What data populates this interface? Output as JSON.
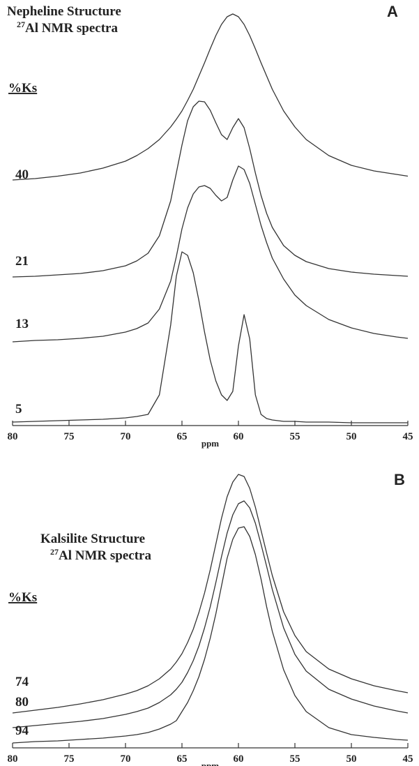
{
  "chart_data": [
    {
      "type": "line",
      "panel": "A",
      "title": "Nepheline Structure",
      "isotope": "27",
      "subtitle": "Al NMR spectra",
      "legend_title": "%Ks",
      "xlabel": "ppm",
      "xlim": [
        80,
        45
      ],
      "xticks": [
        80,
        75,
        70,
        65,
        60,
        55,
        50,
        45
      ],
      "x": [
        80,
        78,
        76,
        74,
        72,
        70,
        69,
        68,
        67,
        66,
        65.5,
        65,
        64.5,
        64,
        63.5,
        63,
        62.5,
        62,
        61.5,
        61,
        60.5,
        60,
        59.5,
        59,
        58.5,
        58,
        57.5,
        57,
        56,
        55,
        54,
        52,
        50,
        48,
        46,
        45
      ],
      "series": [
        {
          "name": "40",
          "color": "#333333",
          "values": [
            10,
            12,
            15.5,
            20,
            27,
            37,
            45,
            55,
            68,
            86,
            97,
            109,
            124,
            140,
            159,
            178,
            198,
            217,
            233,
            244,
            248,
            244,
            233,
            217,
            198,
            178,
            159,
            140,
            109,
            86,
            68,
            45,
            31,
            23,
            18,
            15.5
          ]
        },
        {
          "name": "21",
          "color": "#333333",
          "values": [
            1,
            2,
            4,
            6,
            10,
            17,
            24,
            35,
            60,
            110,
            150,
            190,
            225,
            245,
            253,
            252,
            240,
            222,
            205,
            198,
            215,
            228,
            215,
            185,
            150,
            118,
            92,
            72,
            46,
            32,
            23,
            13,
            8,
            5,
            3,
            2
          ]
        },
        {
          "name": "13",
          "color": "#333333",
          "values": [
            -2,
            0,
            1,
            3,
            6,
            12,
            17,
            25,
            45,
            85,
            120,
            160,
            190,
            210,
            220,
            222,
            218,
            208,
            200,
            205,
            230,
            250,
            245,
            225,
            195,
            165,
            140,
            118,
            88,
            65,
            50,
            30,
            18,
            10,
            5,
            3
          ]
        },
        {
          "name": "5",
          "color": "#333333",
          "values": [
            1,
            2,
            3,
            4,
            5,
            7,
            9,
            12,
            40,
            140,
            210,
            245,
            240,
            215,
            175,
            130,
            90,
            60,
            40,
            32,
            45,
            110,
            155,
            120,
            40,
            12,
            6,
            4,
            2,
            2,
            1,
            1,
            0,
            0,
            0,
            0
          ]
        }
      ]
    },
    {
      "type": "line",
      "panel": "B",
      "title": "Kalsilite Structure",
      "isotope": "27",
      "subtitle": "Al NMR spectra",
      "legend_title": "%Ks",
      "xlabel": "ppm",
      "xlim": [
        80,
        45
      ],
      "xticks": [
        80,
        75,
        70,
        65,
        60,
        55,
        50,
        45
      ],
      "x": [
        80,
        78,
        76,
        74,
        72,
        70,
        69,
        68,
        67,
        66,
        65.5,
        65,
        64.5,
        64,
        63.5,
        63,
        62.5,
        62,
        61.5,
        61,
        60.5,
        60,
        59.5,
        59,
        58.5,
        58,
        57.5,
        57,
        56,
        55,
        54,
        52,
        50,
        48,
        46,
        45
      ],
      "series": [
        {
          "name": "74",
          "color": "#333333",
          "values": [
            -17,
            -13,
            -9,
            -4,
            2,
            10,
            15,
            22,
            32,
            46,
            56,
            68,
            84,
            103,
            127,
            155,
            188,
            225,
            262,
            293,
            314,
            325,
            322,
            305,
            278,
            245,
            212,
            180,
            128,
            94,
            71,
            46,
            32,
            22,
            15,
            12
          ]
        },
        {
          "name": "80",
          "color": "#333333",
          "values": [
            -13,
            -10,
            -7,
            -4,
            0,
            6,
            10,
            15,
            23,
            34,
            42,
            52,
            66,
            83,
            104,
            130,
            160,
            195,
            232,
            266,
            292,
            308,
            312,
            302,
            280,
            250,
            218,
            185,
            130,
            92,
            68,
            42,
            28,
            18,
            11,
            8
          ]
        },
        {
          "name": "94",
          "color": "#333333",
          "values": [
            0,
            2,
            3,
            5,
            7,
            10,
            12,
            15,
            20,
            27,
            32,
            45,
            58,
            75,
            95,
            120,
            150,
            185,
            225,
            265,
            292,
            308,
            310,
            296,
            270,
            235,
            195,
            160,
            105,
            68,
            45,
            22,
            12,
            8,
            5,
            4
          ]
        }
      ]
    }
  ]
}
